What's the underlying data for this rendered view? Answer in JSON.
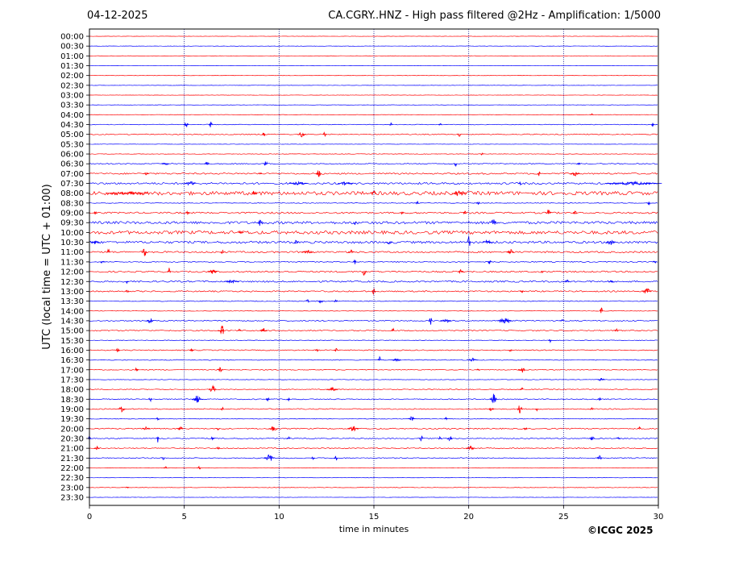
{
  "header": {
    "date": "04-12-2025",
    "title": "CA.CGRY..HNZ - High pass filtered @2Hz - Amplification: 1/5000"
  },
  "footer": {
    "copyright": "©ICGC 2025"
  },
  "colors": {
    "trace_a": "#ff0000",
    "trace_b": "#0000ff",
    "grid": "#00008b",
    "frame": "#000000"
  },
  "chart_data": {
    "type": "line",
    "title": "CA.CGRY..HNZ - High pass filtered @2Hz - Amplification: 1/5000",
    "xlabel": "time in minutes",
    "ylabel": "UTC (local time = UTC + 01:00)",
    "xlim": [
      0,
      30
    ],
    "x_ticks": [
      0,
      5,
      10,
      15,
      20,
      25,
      30
    ],
    "x_gridlines": [
      5,
      10,
      15,
      20,
      25
    ],
    "grid": "vertical dotted lines",
    "row_labels": [
      "00:00",
      "00:30",
      "01:00",
      "01:30",
      "02:00",
      "02:30",
      "03:00",
      "03:30",
      "04:00",
      "04:30",
      "05:00",
      "05:30",
      "06:00",
      "06:30",
      "07:00",
      "07:30",
      "08:00",
      "08:30",
      "09:00",
      "09:30",
      "10:00",
      "10:30",
      "11:00",
      "11:30",
      "12:00",
      "12:30",
      "13:00",
      "13:30",
      "14:00",
      "14:30",
      "15:00",
      "15:30",
      "16:00",
      "16:30",
      "17:00",
      "17:30",
      "18:00",
      "18:30",
      "19:00",
      "19:30",
      "20:00",
      "20:30",
      "21:00",
      "21:30",
      "22:00",
      "22:30",
      "23:00",
      "23:30"
    ],
    "row_colors": "alternating red (:00) and blue (:30)",
    "traces": [
      {
        "label": "00:00",
        "noise": 0.2,
        "events": []
      },
      {
        "label": "00:30",
        "noise": 0.2,
        "events": []
      },
      {
        "label": "01:00",
        "noise": 0.2,
        "events": []
      },
      {
        "label": "01:30",
        "noise": 0.2,
        "events": []
      },
      {
        "label": "02:00",
        "noise": 0.2,
        "events": []
      },
      {
        "label": "02:30",
        "noise": 0.2,
        "events": []
      },
      {
        "label": "03:00",
        "noise": 0.2,
        "events": []
      },
      {
        "label": "03:30",
        "noise": 0.2,
        "events": []
      },
      {
        "label": "04:00",
        "noise": 0.3,
        "events": [
          [
            26.5,
            1.5,
            0.2
          ]
        ]
      },
      {
        "label": "04:30",
        "noise": 0.4,
        "events": [
          [
            5.1,
            4,
            0.3
          ],
          [
            6.4,
            4,
            0.2
          ],
          [
            15.9,
            2,
            0.2
          ],
          [
            18.5,
            2,
            0.2
          ],
          [
            29.7,
            2.5,
            0.2
          ]
        ]
      },
      {
        "label": "05:00",
        "noise": 0.6,
        "events": [
          [
            9.2,
            3,
            0.2
          ],
          [
            11.2,
            3.5,
            0.5
          ],
          [
            12.4,
            4,
            0.2
          ],
          [
            19.5,
            3,
            0.2
          ]
        ]
      },
      {
        "label": "05:30",
        "noise": 0.2,
        "events": []
      },
      {
        "label": "06:00",
        "noise": 0.3,
        "events": [
          [
            20.7,
            1.5,
            0.2
          ]
        ]
      },
      {
        "label": "06:30",
        "noise": 0.6,
        "events": [
          [
            4,
            2.5,
            0.4
          ],
          [
            6.2,
            2.5,
            0.3
          ],
          [
            9.3,
            4,
            0.2
          ],
          [
            19.3,
            3.5,
            0.2
          ],
          [
            25.8,
            2,
            0.2
          ]
        ]
      },
      {
        "label": "07:00",
        "noise": 0.9,
        "events": [
          [
            3,
            2,
            0.3
          ],
          [
            9,
            2.5,
            0.2
          ],
          [
            12.1,
            6,
            0.3
          ],
          [
            23.7,
            5,
            0.2
          ],
          [
            25.6,
            3,
            0.5
          ]
        ]
      },
      {
        "label": "07:30",
        "noise": 1.2,
        "events": [
          [
            5.3,
            3,
            0.6
          ],
          [
            11,
            2,
            1.0
          ],
          [
            13.5,
            2,
            0.8
          ],
          [
            22.7,
            2.5,
            0.2
          ],
          [
            28.7,
            2,
            3.0
          ]
        ]
      },
      {
        "label": "08:00",
        "noise": 2.2,
        "events": [
          [
            2,
            2,
            2.2
          ],
          [
            8.7,
            4,
            0.3
          ],
          [
            15,
            3,
            0.3
          ],
          [
            19.5,
            3.5,
            0.8
          ]
        ]
      },
      {
        "label": "08:30",
        "noise": 0.4,
        "events": [
          [
            17.3,
            3,
            0.2
          ],
          [
            20.5,
            2.5,
            0.2
          ],
          [
            29.5,
            2.5,
            0.2
          ]
        ]
      },
      {
        "label": "09:00",
        "noise": 1.0,
        "events": [
          [
            0.3,
            3,
            0.2
          ],
          [
            5.2,
            4,
            0.2
          ],
          [
            16.5,
            2,
            0.2
          ],
          [
            19.8,
            2.5,
            0.2
          ],
          [
            24.2,
            5,
            0.3
          ],
          [
            25.6,
            4,
            0.2
          ]
        ]
      },
      {
        "label": "09:30",
        "noise": 1.6,
        "events": [
          [
            9,
            4.5,
            0.3
          ],
          [
            14,
            3,
            0.2
          ],
          [
            21.3,
            6,
            0.3
          ]
        ]
      },
      {
        "label": "10:00",
        "noise": 2.0,
        "events": [
          [
            8,
            2,
            0.3
          ]
        ]
      },
      {
        "label": "10:30",
        "noise": 1.4,
        "events": [
          [
            0.3,
            2.5,
            0.5
          ],
          [
            10.9,
            3,
            0.2
          ],
          [
            15.8,
            3,
            0.4
          ],
          [
            20,
            16,
            0.2
          ],
          [
            21,
            3,
            0.5
          ],
          [
            27.5,
            4,
            0.5
          ]
        ]
      },
      {
        "label": "11:00",
        "noise": 1.0,
        "events": [
          [
            1,
            4.5,
            0.2
          ],
          [
            2.9,
            6,
            0.3
          ],
          [
            7,
            3,
            0.2
          ],
          [
            11.5,
            3.5,
            0.6
          ],
          [
            13.8,
            3,
            0.3
          ],
          [
            22.2,
            3.5,
            0.4
          ]
        ]
      },
      {
        "label": "11:30",
        "noise": 0.6,
        "events": [
          [
            0.7,
            2.5,
            0.3
          ],
          [
            14,
            3,
            0.2
          ],
          [
            21.1,
            3,
            0.2
          ],
          [
            29.8,
            2.5,
            0.2
          ]
        ]
      },
      {
        "label": "12:00",
        "noise": 0.9,
        "events": [
          [
            4.2,
            5,
            0.2
          ],
          [
            6.5,
            3.5,
            0.5
          ],
          [
            14.5,
            5.5,
            0.3
          ],
          [
            19.6,
            4,
            0.3
          ],
          [
            23.9,
            2,
            0.2
          ]
        ]
      },
      {
        "label": "12:30",
        "noise": 1.0,
        "events": [
          [
            2,
            2.5,
            0.2
          ],
          [
            7.5,
            2,
            0.8
          ],
          [
            25.2,
            2.5,
            0.3
          ],
          [
            27.5,
            3,
            0.3
          ]
        ]
      },
      {
        "label": "13:00",
        "noise": 0.8,
        "events": [
          [
            2,
            2,
            0.2
          ],
          [
            15,
            5,
            0.2
          ],
          [
            22.8,
            2,
            0.2
          ],
          [
            29.4,
            4,
            0.5
          ]
        ]
      },
      {
        "label": "13:30",
        "noise": 0.5,
        "events": [
          [
            11.5,
            3,
            0.2
          ],
          [
            12.2,
            3,
            0.3
          ],
          [
            13,
            2,
            0.2
          ]
        ]
      },
      {
        "label": "14:00",
        "noise": 0.3,
        "events": [
          [
            27,
            4,
            0.2
          ]
        ]
      },
      {
        "label": "14:30",
        "noise": 0.7,
        "events": [
          [
            3.2,
            3.5,
            0.4
          ],
          [
            18,
            6,
            0.2
          ],
          [
            18.8,
            3,
            0.6
          ],
          [
            21.9,
            5,
            0.8
          ],
          [
            24.9,
            2,
            0.2
          ]
        ]
      },
      {
        "label": "15:00",
        "noise": 0.7,
        "events": [
          [
            7,
            12,
            0.2
          ],
          [
            6.9,
            4,
            0.3
          ],
          [
            7.9,
            3,
            0.2
          ],
          [
            9.2,
            3.5,
            0.4
          ],
          [
            16,
            3,
            0.2
          ],
          [
            27.8,
            2.5,
            0.2
          ]
        ]
      },
      {
        "label": "15:30",
        "noise": 0.4,
        "events": [
          [
            24.3,
            2.5,
            0.2
          ]
        ]
      },
      {
        "label": "16:00",
        "noise": 0.6,
        "events": [
          [
            1.5,
            3.5,
            0.2
          ],
          [
            5.4,
            2.5,
            0.2
          ],
          [
            12,
            2,
            0.2
          ],
          [
            13,
            3,
            0.2
          ],
          [
            22.2,
            2,
            0.2
          ]
        ]
      },
      {
        "label": "16:30",
        "noise": 0.5,
        "events": [
          [
            15.3,
            4,
            0.2
          ],
          [
            16.2,
            2.5,
            0.5
          ],
          [
            20.2,
            2.5,
            0.6
          ]
        ]
      },
      {
        "label": "17:00",
        "noise": 0.5,
        "events": [
          [
            2.5,
            4,
            0.2
          ],
          [
            6.9,
            5,
            0.3
          ],
          [
            20.5,
            2.5,
            0.2
          ],
          [
            22.8,
            4,
            0.4
          ]
        ]
      },
      {
        "label": "17:30",
        "noise": 0.3,
        "events": [
          [
            27,
            2,
            0.4
          ]
        ]
      },
      {
        "label": "18:00",
        "noise": 0.5,
        "events": [
          [
            6.5,
            5,
            0.4
          ],
          [
            12.8,
            2.5,
            0.6
          ],
          [
            22.8,
            3,
            0.2
          ]
        ]
      },
      {
        "label": "18:30",
        "noise": 0.6,
        "events": [
          [
            3.2,
            3.5,
            0.2
          ],
          [
            5.7,
            5,
            0.6
          ],
          [
            9.4,
            4,
            0.2
          ],
          [
            10.5,
            2.5,
            0.2
          ],
          [
            21.3,
            7,
            0.4
          ],
          [
            26.9,
            2,
            0.2
          ]
        ]
      },
      {
        "label": "19:00",
        "noise": 0.6,
        "events": [
          [
            1.7,
            3.5,
            0.4
          ],
          [
            7,
            4.5,
            0.2
          ],
          [
            21.2,
            3,
            0.3
          ],
          [
            22.7,
            6,
            0.3
          ],
          [
            23.6,
            2.5,
            0.2
          ],
          [
            26.5,
            3,
            0.2
          ]
        ]
      },
      {
        "label": "19:30",
        "noise": 0.4,
        "events": [
          [
            3.6,
            3,
            0.2
          ],
          [
            17,
            3,
            0.4
          ],
          [
            18.8,
            2,
            0.2
          ]
        ]
      },
      {
        "label": "20:00",
        "noise": 0.7,
        "events": [
          [
            3,
            3,
            0.4
          ],
          [
            4.8,
            4,
            0.3
          ],
          [
            6.8,
            3,
            0.2
          ],
          [
            9.7,
            3.5,
            0.5
          ],
          [
            13.9,
            3.5,
            0.6
          ],
          [
            23,
            3,
            0.2
          ],
          [
            29,
            2.5,
            0.2
          ]
        ]
      },
      {
        "label": "20:30",
        "noise": 0.6,
        "events": [
          [
            0,
            3,
            0.2
          ],
          [
            3.6,
            5,
            0.2
          ],
          [
            6.5,
            4,
            0.2
          ],
          [
            10.5,
            2.5,
            0.2
          ],
          [
            17.5,
            4.5,
            0.2
          ],
          [
            18.5,
            4,
            0.2
          ],
          [
            19,
            4,
            0.3
          ],
          [
            26.5,
            4,
            0.3
          ],
          [
            27.9,
            3,
            0.2
          ]
        ]
      },
      {
        "label": "21:00",
        "noise": 0.6,
        "events": [
          [
            0.4,
            2.5,
            0.3
          ],
          [
            6.8,
            2,
            0.2
          ],
          [
            20.1,
            3,
            0.5
          ]
        ]
      },
      {
        "label": "21:30",
        "noise": 0.6,
        "events": [
          [
            3.9,
            2.5,
            0.2
          ],
          [
            9.5,
            4.5,
            0.6
          ],
          [
            11.8,
            3,
            0.2
          ],
          [
            13,
            3.5,
            0.2
          ],
          [
            26.9,
            3,
            0.3
          ]
        ]
      },
      {
        "label": "22:00",
        "noise": 0.3,
        "events": [
          [
            4,
            2,
            0.2
          ],
          [
            5.8,
            2,
            0.2
          ]
        ]
      },
      {
        "label": "22:30",
        "noise": 0.2,
        "events": []
      },
      {
        "label": "23:00",
        "noise": 0.3,
        "events": [
          [
            2,
            1.5,
            0.2
          ]
        ]
      },
      {
        "label": "23:30",
        "noise": 0.2,
        "events": []
      }
    ]
  }
}
